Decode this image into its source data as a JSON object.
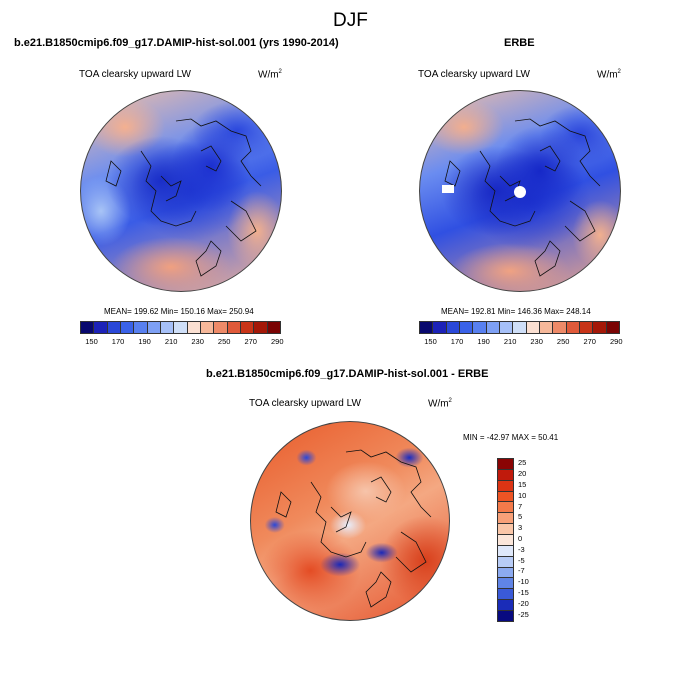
{
  "figure": {
    "title": "DJF"
  },
  "panel1": {
    "title": "b.e21.B1850cmip6.f09_g17.DAMIP-hist-sol.001 (yrs 1990-2014)",
    "variable": "TOA clearsky upward LW",
    "units": "W/m",
    "units_exp": "2",
    "stats": "MEAN= 199.62  Min= 150.16  Max= 250.94"
  },
  "panel2": {
    "title": "ERBE",
    "variable": "TOA clearsky upward LW",
    "units": "W/m",
    "units_exp": "2",
    "stats": "MEAN= 192.81  Min= 146.36  Max= 248.14"
  },
  "panel3": {
    "title": "b.e21.B1850cmip6.f09_g17.DAMIP-hist-sol.001 - ERBE",
    "variable": "TOA clearsky upward LW",
    "units": "W/m",
    "units_exp": "2",
    "stats": "MIN = -42.97 MAX =  50.41"
  },
  "colorbar_top": {
    "ticks": [
      "150",
      "170",
      "190",
      "210",
      "230",
      "250",
      "270",
      "290"
    ],
    "colors": [
      "#08086e",
      "#1c22b8",
      "#2a48d8",
      "#3a62e8",
      "#5880f0",
      "#7ea0f4",
      "#a6c0f8",
      "#cfdff8",
      "#fbe0d2",
      "#f6b89a",
      "#ee8a68",
      "#e05a3a",
      "#c83418",
      "#a41808",
      "#7a0404"
    ]
  },
  "colorbar_diff": {
    "ticks": [
      "25",
      "20",
      "15",
      "10",
      "7",
      "5",
      "3",
      "0",
      "-3",
      "-5",
      "-7",
      "-10",
      "-15",
      "-20",
      "-25"
    ],
    "colors": [
      "#8a0404",
      "#c01a0c",
      "#dc3414",
      "#ee5424",
      "#f47a4a",
      "#f8a078",
      "#fac6a8",
      "#fbe6da",
      "#dfe8fa",
      "#b8ccf6",
      "#8caaf0",
      "#6084e6",
      "#3a5ad8",
      "#1a2cb8",
      "#080a80"
    ]
  }
}
